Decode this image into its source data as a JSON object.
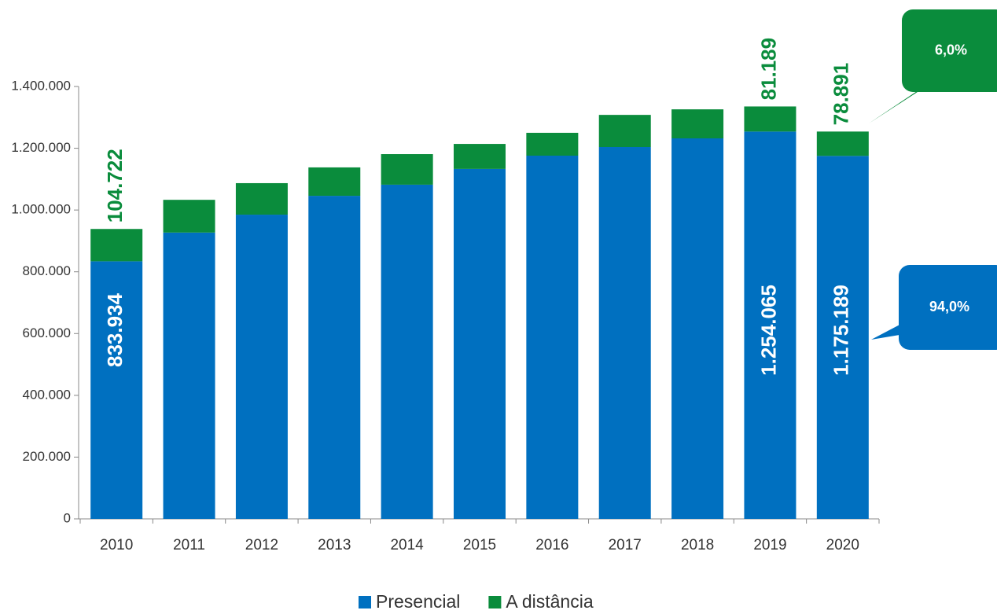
{
  "chart_data": {
    "type": "stacked_bar",
    "categories": [
      "2010",
      "2011",
      "2012",
      "2013",
      "2014",
      "2015",
      "2016",
      "2017",
      "2018",
      "2019",
      "2020"
    ],
    "series": [
      {
        "name": "Presencial",
        "color": "#0070c0",
        "values": [
          833934,
          927000,
          985000,
          1046000,
          1082000,
          1133000,
          1176000,
          1204000,
          1232000,
          1254065,
          1175189
        ],
        "value_labels": [
          "833.934",
          null,
          null,
          null,
          null,
          null,
          null,
          null,
          null,
          "1.254.065",
          "1.175.189"
        ]
      },
      {
        "name": "A distância",
        "color": "#0a8c3c",
        "values": [
          104722,
          106000,
          102000,
          92000,
          99000,
          81000,
          74000,
          104000,
          94000,
          81189,
          78891
        ],
        "value_labels": [
          "104.722",
          null,
          null,
          null,
          null,
          null,
          null,
          null,
          null,
          "81.189",
          "78.891"
        ]
      }
    ],
    "ylim": [
      0,
      1400000
    ],
    "yticks": [
      0,
      {
        "value": 200000,
        "label": "200.000"
      },
      {
        "value": 400000,
        "label": "400.000"
      },
      {
        "value": 600000,
        "label": "600.000"
      },
      {
        "value": 800000,
        "label": "800.000"
      },
      {
        "value": 1000000,
        "label": "1.000.000"
      },
      {
        "value": 1200000,
        "label": "1.200.000"
      },
      {
        "value": 1400000,
        "label": "1.400.000"
      }
    ],
    "annotations": [
      {
        "text": "94,0%",
        "series": 0
      },
      {
        "text": "6,0%",
        "series": 1
      }
    ],
    "legend": "bottom"
  }
}
